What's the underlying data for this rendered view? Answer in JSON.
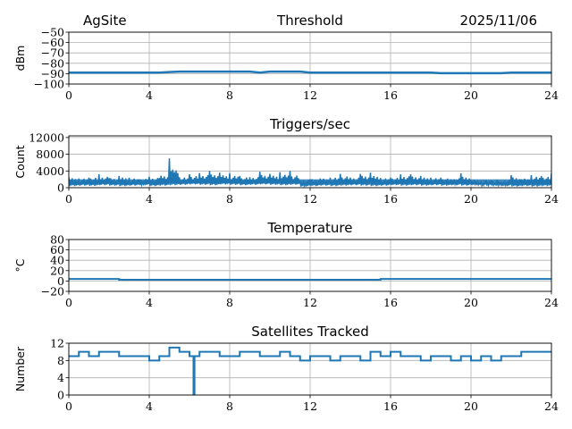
{
  "header": {
    "site": "AgSite",
    "date": "2025/11/06"
  },
  "chart_data": [
    {
      "type": "line",
      "title": "Threshold",
      "xlabel": "",
      "ylabel": "dBm",
      "xlim": [
        0,
        24
      ],
      "ylim": [
        -100,
        -50
      ],
      "xticks": [
        "0",
        "4",
        "8",
        "12",
        "16",
        "20",
        "24"
      ],
      "yticks": [
        "−50",
        "−60",
        "−70",
        "−80",
        "−90",
        "−100"
      ],
      "ytick_values": [
        -50,
        -60,
        -70,
        -80,
        -90,
        -100
      ],
      "grid": true,
      "color": "#1f77b4",
      "series": [
        {
          "name": "threshold",
          "x_step": 0.5,
          "values": [
            -89,
            -89,
            -89,
            -89,
            -89,
            -89,
            -89,
            -89,
            -89,
            -89,
            -88.5,
            -88,
            -88,
            -88,
            -88,
            -88,
            -88,
            -88,
            -88,
            -89,
            -88,
            -88,
            -88,
            -88,
            -89,
            -89,
            -89,
            -89,
            -89,
            -89,
            -89,
            -89,
            -89,
            -89,
            -89,
            -89,
            -89,
            -89.5,
            -89.5,
            -89.5,
            -89.5,
            -89.5,
            -89.5,
            -89.5,
            -89,
            -89,
            -89,
            -89,
            -89
          ]
        }
      ]
    },
    {
      "type": "line",
      "title": "Triggers/sec",
      "xlabel": "",
      "ylabel": "Count",
      "xlim": [
        0,
        24
      ],
      "ylim": [
        0,
        12400
      ],
      "xticks": [
        "0",
        "4",
        "8",
        "12",
        "16",
        "20",
        "24"
      ],
      "yticks": [
        "0",
        "4000",
        "8000",
        "12000"
      ],
      "ytick_values": [
        0,
        4000,
        8000,
        12000
      ],
      "grid": true,
      "color": "#1f77b4",
      "series": [
        {
          "name": "upper",
          "x_step": 0.5,
          "values": [
            2500,
            2200,
            2400,
            3200,
            2300,
            2800,
            2400,
            2000,
            2600,
            2300,
            7000,
            2500,
            3200,
            3500,
            4000,
            3600,
            3500,
            2800,
            2500,
            3800,
            3300,
            3700,
            4000,
            1800,
            2000,
            2200,
            2400,
            3300,
            2400,
            3300,
            3600,
            2300,
            2400,
            3200,
            3200,
            2800,
            2400,
            2400,
            2000,
            3400,
            1800,
            1600,
            1700,
            1400,
            3000,
            2000,
            3000,
            2800,
            3400
          ]
        },
        {
          "name": "lower",
          "x_step": 0.5,
          "values": [
            400,
            500,
            450,
            600,
            500,
            400,
            500,
            600,
            400,
            500,
            600,
            700,
            800,
            700,
            600,
            800,
            700,
            600,
            700,
            800,
            700,
            600,
            700,
            300,
            400,
            500,
            400,
            500,
            600,
            500,
            400,
            500,
            600,
            500,
            600,
            500,
            600,
            500,
            600,
            500,
            600,
            500,
            500,
            400,
            300,
            400,
            300,
            400,
            400
          ]
        }
      ]
    },
    {
      "type": "line",
      "title": "Temperature",
      "xlabel": "",
      "ylabel": "°C",
      "xlim": [
        0,
        24
      ],
      "ylim": [
        -20,
        80
      ],
      "xticks": [
        "0",
        "4",
        "8",
        "12",
        "16",
        "20",
        "24"
      ],
      "yticks": [
        "80",
        "60",
        "40",
        "20",
        "0",
        "−20"
      ],
      "ytick_values": [
        80,
        60,
        40,
        20,
        0,
        -20
      ],
      "grid": true,
      "color": "#1f77b4",
      "series": [
        {
          "name": "temperature",
          "x": [
            0,
            2.5,
            2.5,
            15.5,
            15.5,
            24
          ],
          "values": [
            4,
            4,
            2.5,
            2.5,
            4,
            4
          ]
        }
      ]
    },
    {
      "type": "line",
      "title": "Satellites Tracked",
      "xlabel": "",
      "ylabel": "Number",
      "xlim": [
        0,
        24
      ],
      "ylim": [
        0,
        12
      ],
      "xticks": [
        "0",
        "4",
        "8",
        "12",
        "16",
        "20",
        "24"
      ],
      "yticks": [
        "12",
        "8",
        "4",
        "0"
      ],
      "ytick_values": [
        12,
        8,
        4,
        0
      ],
      "grid": true,
      "color": "#1f77b4",
      "series": [
        {
          "name": "satellites",
          "step": true,
          "x": [
            0,
            0.5,
            1,
            1.5,
            2,
            2.5,
            3,
            3.5,
            4,
            4.5,
            5,
            5.5,
            6,
            6.2,
            6.25,
            6.5,
            7,
            7.5,
            8,
            8.5,
            9,
            9.5,
            10,
            10.5,
            11,
            11.5,
            12,
            12.5,
            13,
            13.5,
            14,
            14.5,
            15,
            15.5,
            16,
            16.5,
            17,
            17.5,
            18,
            18.5,
            19,
            19.5,
            20,
            20.5,
            21,
            21.5,
            22,
            22.5,
            23,
            23.5,
            24
          ],
          "values": [
            9,
            10,
            9,
            10,
            10,
            9,
            9,
            9,
            8,
            9,
            11,
            10,
            9,
            0,
            9,
            10,
            10,
            9,
            9,
            10,
            10,
            9,
            9,
            10,
            9,
            8,
            9,
            9,
            8,
            9,
            9,
            8,
            10,
            9,
            10,
            9,
            9,
            8,
            9,
            9,
            8,
            9,
            8,
            9,
            8,
            9,
            9,
            10,
            10,
            10,
            10
          ]
        }
      ]
    }
  ]
}
